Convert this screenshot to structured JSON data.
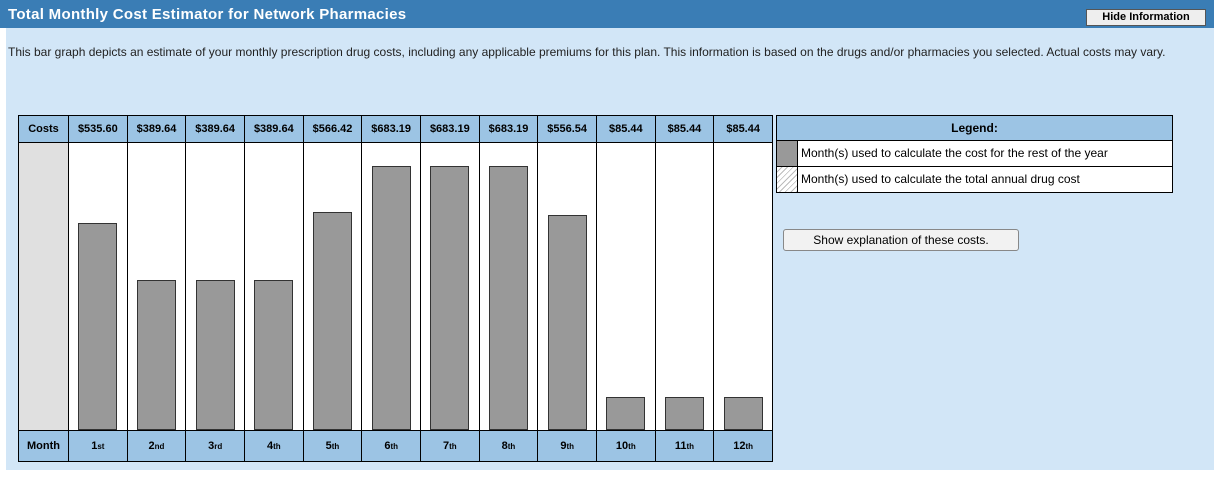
{
  "header": {
    "title": "Total Monthly Cost Estimator for Network Pharmacies",
    "button": "Hide Information"
  },
  "description": "This bar graph depicts an estimate of your monthly prescription drug costs, including any applicable premiums for this plan. This information is based on the drugs and/or pharmacies you selected. Actual costs may vary.",
  "chart_data": {
    "type": "bar",
    "row_labels": {
      "costs": "Costs",
      "month": "Month"
    },
    "categories": [
      "1st",
      "2nd",
      "3rd",
      "4th",
      "5th",
      "6th",
      "7th",
      "8th",
      "9th",
      "10th",
      "11th",
      "12th"
    ],
    "values": [
      535.6,
      389.64,
      389.64,
      389.64,
      566.42,
      683.19,
      683.19,
      683.19,
      556.54,
      85.44,
      85.44,
      85.44
    ],
    "value_labels": [
      "$535.60",
      "$389.64",
      "$389.64",
      "$389.64",
      "$566.42",
      "$683.19",
      "$683.19",
      "$683.19",
      "$556.54",
      "$85.44",
      "$85.44",
      "$85.44"
    ],
    "color": "#999999"
  },
  "legend": {
    "title": "Legend:",
    "items": [
      {
        "label": "Month(s) used to calculate the cost for the rest of the year",
        "pattern": "solid"
      },
      {
        "label": "Month(s) used to calculate the total annual drug cost",
        "pattern": "hatched"
      }
    ]
  },
  "explain_button": "Show explanation of these costs."
}
